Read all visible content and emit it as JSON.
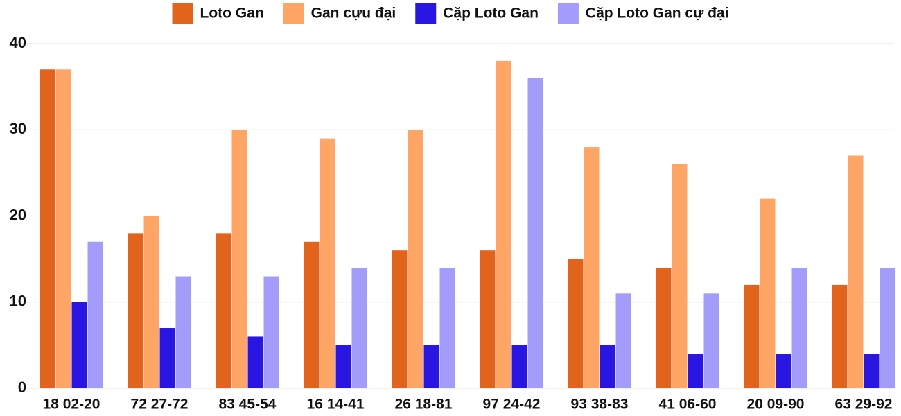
{
  "chart_data": {
    "type": "bar",
    "categories": [
      "18 02-20",
      "72 27-72",
      "83 45-54",
      "16 14-41",
      "26 18-81",
      "97 24-42",
      "93 38-83",
      "41 06-60",
      "20 09-90",
      "63 29-92"
    ],
    "series": [
      {
        "name": "Loto Gan",
        "color": "#e2631b",
        "values": [
          37,
          18,
          18,
          17,
          16,
          16,
          15,
          14,
          12,
          12
        ]
      },
      {
        "name": "Gan cựu đại",
        "color": "#ffa566",
        "values": [
          37,
          20,
          30,
          29,
          30,
          38,
          28,
          26,
          22,
          27
        ]
      },
      {
        "name": "Cặp Loto Gan",
        "color": "#2916e2",
        "values": [
          10,
          7,
          6,
          5,
          5,
          5,
          5,
          4,
          4,
          4
        ]
      },
      {
        "name": "Cặp Loto Gan cự đại",
        "color": "#a39cfb",
        "values": [
          17,
          13,
          13,
          14,
          14,
          36,
          11,
          11,
          14,
          14
        ]
      }
    ],
    "ylim": [
      0,
      40
    ],
    "yticks": [
      0,
      10,
      20,
      30,
      40
    ],
    "grid": true,
    "legend": "top"
  }
}
